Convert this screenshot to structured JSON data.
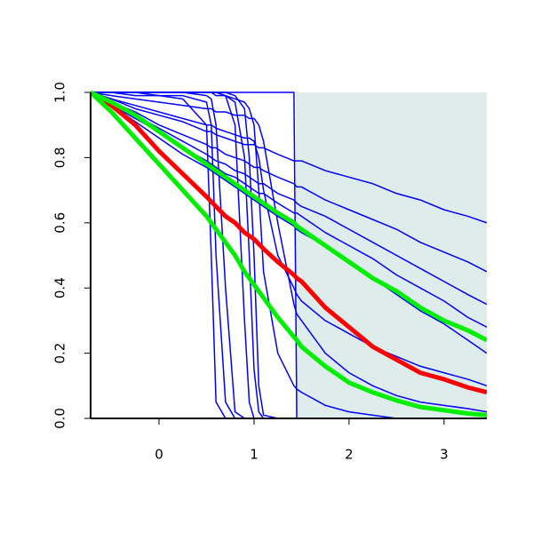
{
  "chart_data": {
    "type": "line",
    "x": [
      -0.72,
      -0.5,
      -0.25,
      0,
      0.25,
      0.5,
      0.55,
      0.6,
      0.7,
      0.8,
      0.9,
      0.95,
      1,
      1.05,
      1.1,
      1.25,
      1.42,
      1.45,
      1.5,
      1.75,
      2,
      2.25,
      2.5,
      2.75,
      3,
      3.25,
      3.45
    ],
    "xlim": [
      -0.72,
      3.45
    ],
    "ylim": [
      0,
      1
    ],
    "xticks": [
      0,
      1,
      2,
      3
    ],
    "yticks": [
      {
        "value": 0,
        "label": "0.0"
      },
      {
        "value": 0.2,
        "label": "0.2"
      },
      {
        "value": 0.4,
        "label": "0.4"
      },
      {
        "value": 0.6,
        "label": "0.6"
      },
      {
        "value": 0.8,
        "label": "0.8"
      },
      {
        "value": 1,
        "label": "1.0"
      }
    ],
    "shade": {
      "x": [
        1.44,
        3.45
      ],
      "color": "#deeceb"
    },
    "series": [
      {
        "color": "#0000ff",
        "width": 1.5,
        "values": [
          1,
          0.98,
          0.95,
          0.93,
          0.91,
          0.88,
          0.88,
          0.87,
          0.86,
          0.85,
          0.84,
          0.84,
          0.84,
          0.83,
          0.83,
          0.81,
          0.79,
          0.79,
          0.79,
          0.76,
          0.74,
          0.72,
          0.69,
          0.67,
          0.64,
          0.62,
          0.6
        ]
      },
      {
        "color": "#0000ff",
        "width": 1.5,
        "values": [
          1,
          0.97,
          0.94,
          0.9,
          0.87,
          0.84,
          0.83,
          0.83,
          0.81,
          0.8,
          0.79,
          0.78,
          0.77,
          0.77,
          0.76,
          0.74,
          0.72,
          0.71,
          0.71,
          0.67,
          0.64,
          0.61,
          0.58,
          0.54,
          0.51,
          0.48,
          0.45
        ]
      },
      {
        "color": "#0000ff",
        "width": 1.5,
        "values": [
          1,
          0.97,
          0.93,
          0.89,
          0.85,
          0.81,
          0.8,
          0.79,
          0.78,
          0.76,
          0.75,
          0.74,
          0.73,
          0.72,
          0.72,
          0.69,
          0.67,
          0.66,
          0.65,
          0.62,
          0.58,
          0.54,
          0.5,
          0.46,
          0.42,
          0.38,
          0.35
        ]
      },
      {
        "color": "#0000ff",
        "width": 1.5,
        "values": [
          1,
          0.96,
          0.92,
          0.88,
          0.83,
          0.79,
          0.78,
          0.77,
          0.75,
          0.74,
          0.72,
          0.71,
          0.7,
          0.69,
          0.69,
          0.66,
          0.63,
          0.63,
          0.62,
          0.57,
          0.53,
          0.49,
          0.44,
          0.4,
          0.36,
          0.31,
          0.28
        ]
      },
      {
        "color": "#0000ff",
        "width": 1.5,
        "values": [
          1,
          0.96,
          0.91,
          0.86,
          0.81,
          0.77,
          0.76,
          0.75,
          0.73,
          0.71,
          0.69,
          0.68,
          0.67,
          0.66,
          0.65,
          0.62,
          0.59,
          0.58,
          0.57,
          0.53,
          0.48,
          0.43,
          0.38,
          0.33,
          0.29,
          0.24,
          0.2
        ]
      },
      {
        "color": "#0000ff",
        "width": 1.5,
        "values": [
          1,
          1,
          0.99,
          0.99,
          0.98,
          0.9,
          0.5,
          0.05,
          0,
          0,
          0,
          0,
          0,
          0,
          0,
          0,
          0,
          0,
          0,
          0,
          0,
          0,
          0,
          0,
          0,
          0,
          0
        ]
      },
      {
        "color": "#0000ff",
        "width": 1.5,
        "values": [
          1,
          1,
          1,
          0.99,
          0.99,
          0.97,
          0.9,
          0.5,
          0.05,
          0,
          0,
          0,
          0,
          0,
          0,
          0,
          0,
          0,
          0,
          0,
          0,
          0,
          0,
          0,
          0,
          0,
          0
        ]
      },
      {
        "color": "#0000ff",
        "width": 1.5,
        "values": [
          1,
          1,
          1,
          1,
          1,
          0.99,
          0.98,
          0.9,
          0.4,
          0.02,
          0,
          0,
          0,
          0,
          0,
          0,
          0,
          0,
          0,
          0,
          0,
          0,
          0,
          0,
          0,
          0,
          0
        ]
      },
      {
        "color": "#0000ff",
        "width": 1.5,
        "values": [
          1,
          1,
          1,
          1,
          1,
          1,
          1,
          1,
          0.99,
          0.9,
          0.3,
          0.05,
          0,
          0,
          0,
          0,
          0,
          0,
          0,
          0,
          0,
          0,
          0,
          0,
          0,
          0,
          0
        ]
      },
      {
        "color": "#0000ff",
        "width": 1.5,
        "values": [
          1,
          1,
          1,
          1,
          1,
          1,
          1,
          1,
          0.99,
          0.97,
          0.8,
          0.5,
          0.15,
          0.02,
          0,
          0,
          0,
          0,
          0,
          0,
          0,
          0,
          0,
          0,
          0,
          0,
          0
        ]
      },
      {
        "color": "#0000ff",
        "width": 1.5,
        "values": [
          1,
          1,
          1,
          1,
          1,
          1,
          1,
          1,
          1,
          0.99,
          0.95,
          0.8,
          0.5,
          0.1,
          0.01,
          0,
          0,
          0,
          0,
          0,
          0,
          0,
          0,
          0,
          0,
          0,
          0
        ]
      },
      {
        "color": "#0000ff",
        "width": 1.5,
        "values": [
          1,
          1,
          1,
          1,
          1,
          1,
          1,
          1,
          1,
          1,
          1,
          1,
          1,
          1,
          1,
          1,
          1,
          0,
          0,
          0,
          0,
          0,
          0,
          0,
          0,
          0,
          0
        ]
      },
      {
        "color": "#0000ff",
        "width": 1.5,
        "values": [
          1,
          0.99,
          0.98,
          0.97,
          0.96,
          0.95,
          0.95,
          0.94,
          0.94,
          0.93,
          0.93,
          0.92,
          0.92,
          0.9,
          0.85,
          0.6,
          0.35,
          0.32,
          0.3,
          0.2,
          0.14,
          0.1,
          0.07,
          0.05,
          0.04,
          0.03,
          0.02
        ]
      },
      {
        "color": "#0000ff",
        "width": 1.5,
        "values": [
          1,
          0.98,
          0.96,
          0.94,
          0.92,
          0.9,
          0.9,
          0.89,
          0.88,
          0.87,
          0.86,
          0.86,
          0.85,
          0.8,
          0.7,
          0.5,
          0.4,
          0.38,
          0.36,
          0.3,
          0.26,
          0.22,
          0.19,
          0.16,
          0.14,
          0.12,
          0.1
        ]
      },
      {
        "color": "#0000ff",
        "width": 1.5,
        "values": [
          1,
          1,
          1,
          1,
          1,
          1,
          1,
          0.99,
          0.99,
          0.98,
          0.97,
          0.95,
          0.9,
          0.7,
          0.45,
          0.2,
          0.1,
          0.09,
          0.08,
          0.04,
          0.02,
          0.01,
          0,
          0,
          0,
          0,
          0
        ]
      },
      {
        "color": "#ff0000",
        "width": 5,
        "values": [
          1,
          0.96,
          0.9,
          0.82,
          0.75,
          0.68,
          0.665,
          0.65,
          0.62,
          0.6,
          0.57,
          0.56,
          0.55,
          0.535,
          0.52,
          0.48,
          0.44,
          0.43,
          0.42,
          0.34,
          0.28,
          0.22,
          0.18,
          0.14,
          0.12,
          0.095,
          0.08
        ]
      },
      {
        "color": "#00ee00",
        "width": 5,
        "values": [
          1,
          0.94,
          0.86,
          0.78,
          0.7,
          0.62,
          0.6,
          0.58,
          0.54,
          0.5,
          0.45,
          0.43,
          0.41,
          0.39,
          0.37,
          0.31,
          0.25,
          0.24,
          0.22,
          0.16,
          0.11,
          0.08,
          0.055,
          0.035,
          0.025,
          0.015,
          0.01
        ]
      },
      {
        "color": "#00ee00",
        "width": 5,
        "values": [
          1,
          0.97,
          0.93,
          0.88,
          0.83,
          0.78,
          0.77,
          0.76,
          0.74,
          0.72,
          0.7,
          0.69,
          0.68,
          0.67,
          0.66,
          0.63,
          0.6,
          0.59,
          0.58,
          0.53,
          0.48,
          0.43,
          0.39,
          0.34,
          0.3,
          0.27,
          0.24
        ]
      }
    ]
  }
}
